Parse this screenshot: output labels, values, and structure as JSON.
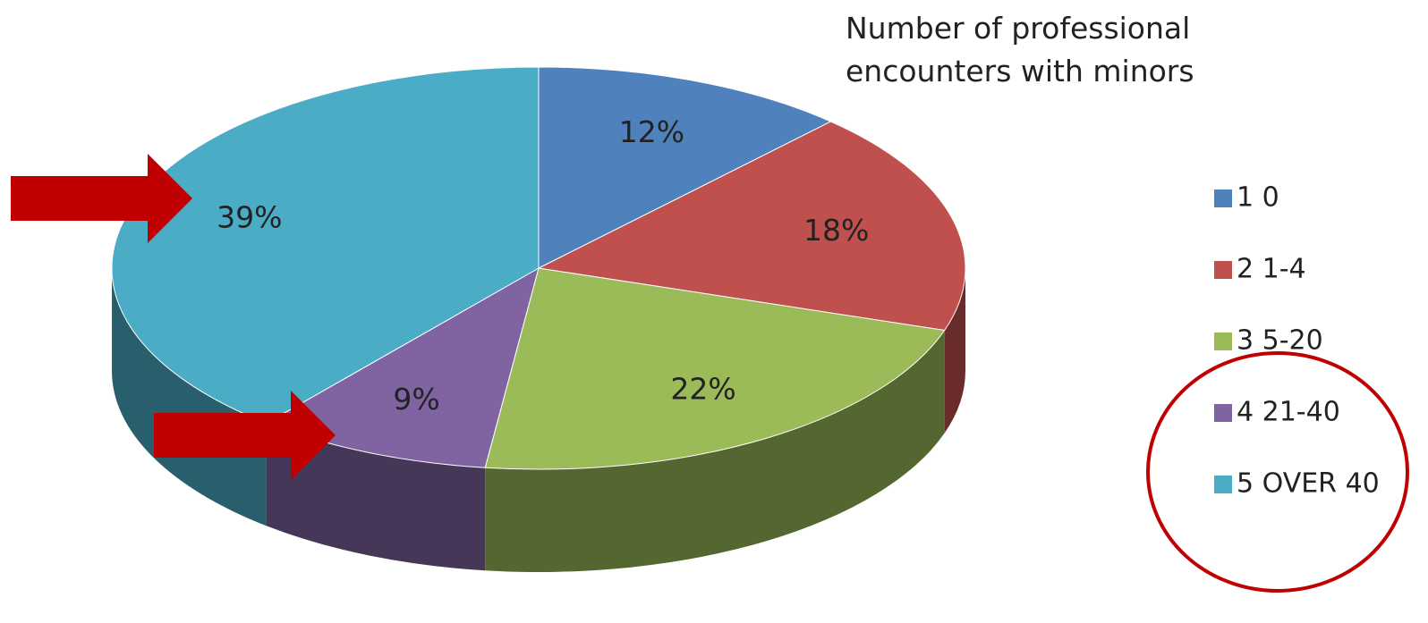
{
  "chart_data": {
    "type": "pie",
    "title": "Number of professional encounters with minors",
    "categories": [
      "1 0",
      "2 1-4",
      "3 5-20",
      "4 21-40",
      "5 OVER 40"
    ],
    "values": [
      12,
      18,
      22,
      9,
      39
    ],
    "value_labels": [
      "12%",
      "18%",
      "22%",
      "9%",
      "39%"
    ],
    "colors": [
      "#4f81bd",
      "#c0504d",
      "#9bbb59",
      "#8064a2",
      "#4bacc6"
    ],
    "legend": "right"
  }
}
